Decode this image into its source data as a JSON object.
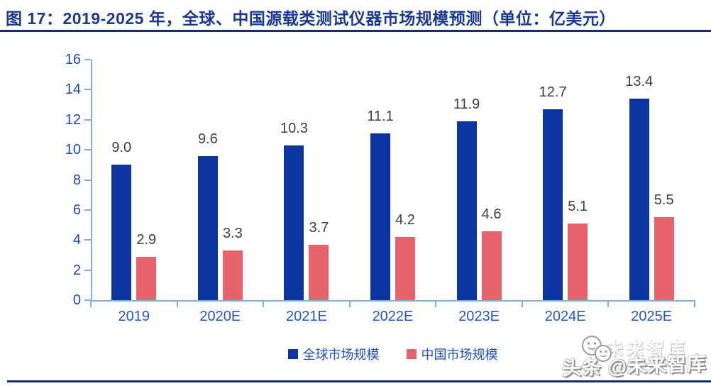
{
  "chart_data": {
    "type": "bar",
    "title": "图 17：2019-2025 年，全球、中国源载类测试仪器市场规模预测（单位：亿美元）",
    "categories": [
      "2019",
      "2020E",
      "2021E",
      "2022E",
      "2023E",
      "2024E",
      "2025E"
    ],
    "series": [
      {
        "name": "全球市场规模",
        "color": "#0d35a0",
        "values": [
          9.0,
          9.6,
          10.3,
          11.1,
          11.9,
          12.7,
          13.4
        ],
        "labels": [
          "9.0",
          "9.6",
          "10.3",
          "11.1",
          "11.9",
          "12.7",
          "13.4"
        ]
      },
      {
        "name": "中国市场规模",
        "color": "#e7636b",
        "values": [
          2.9,
          3.3,
          3.7,
          4.2,
          4.6,
          5.1,
          5.5
        ],
        "labels": [
          "2.9",
          "3.3",
          "3.7",
          "4.2",
          "4.6",
          "5.1",
          "5.5"
        ]
      }
    ],
    "xlabel": "",
    "ylabel": "",
    "ylim": [
      0,
      16
    ],
    "ytick_step": 2,
    "yticks": [
      0,
      2,
      4,
      6,
      8,
      10,
      12,
      14,
      16
    ],
    "grid": false,
    "legend_position": "bottom",
    "value_labels": true
  },
  "colors": {
    "title": "#1b3a8f",
    "rule": "#16306e",
    "axis_line": "#85aede",
    "y_tick_label": "#1e4ba8",
    "x_tick_label": "#2258cc",
    "value_label": "#3f3f3f",
    "legend_text": "#1e50bb"
  },
  "watermark": {
    "ghost_text": "未来智库",
    "main_text": "头条 @未来智库",
    "icon": "wechat-smileys-icon"
  }
}
